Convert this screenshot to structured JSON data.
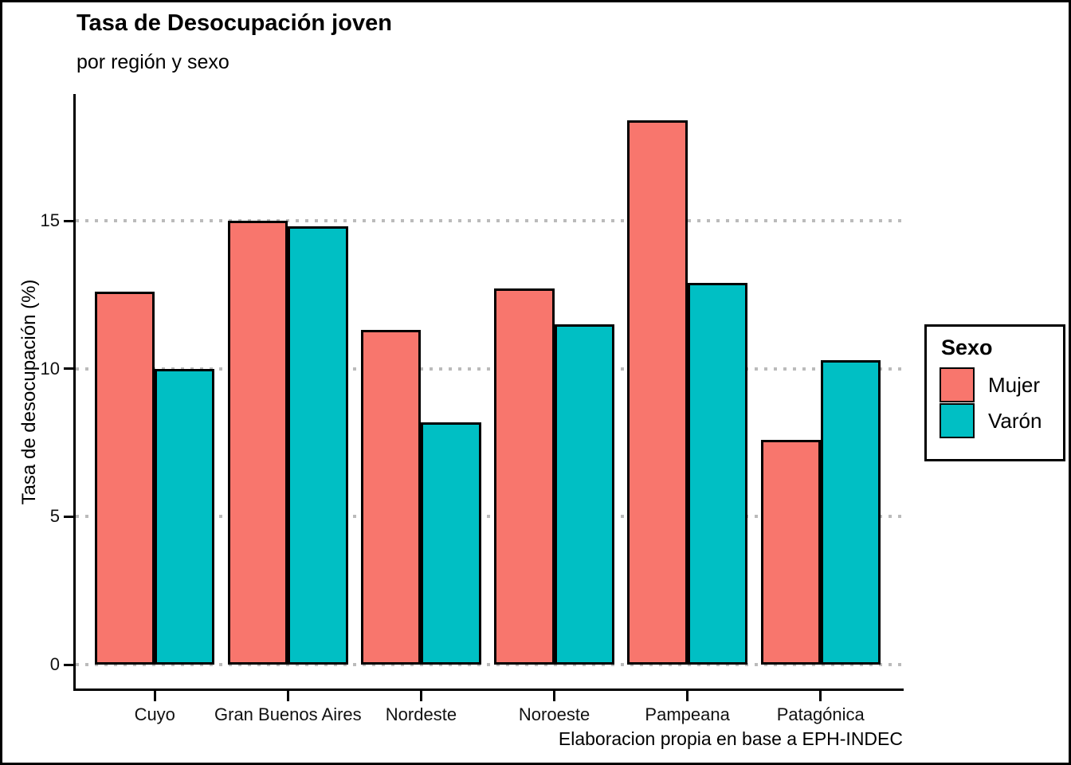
{
  "chart_data": {
    "type": "bar",
    "title": "Tasa de Desocupación joven",
    "subtitle": "por región y sexo",
    "ylabel": "Tasa de desocupación (%)",
    "xlabel": "",
    "caption": "Elaboracion propia en base a EPH-INDEC",
    "categories": [
      "Cuyo",
      "Gran Buenos Aires",
      "Nordeste",
      "Noroeste",
      "Pampeana",
      "Patagónica"
    ],
    "series": [
      {
        "name": "Mujer",
        "color": "#F8766D",
        "values": [
          12.6,
          15.0,
          11.3,
          12.7,
          18.4,
          7.6
        ]
      },
      {
        "name": "Varón",
        "color": "#00BFC4",
        "values": [
          10.0,
          14.8,
          8.2,
          11.5,
          12.9,
          10.3
        ]
      }
    ],
    "legend": {
      "title": "Sexo",
      "position": "right"
    },
    "yticks": [
      0,
      5,
      10,
      15
    ],
    "ylim": [
      -0.9,
      19.3
    ],
    "grid": "horizontal-major-dotted",
    "gridline_color": "#bbbbbb",
    "bar_outline_color": "#000000",
    "background_color": "#ffffff"
  }
}
